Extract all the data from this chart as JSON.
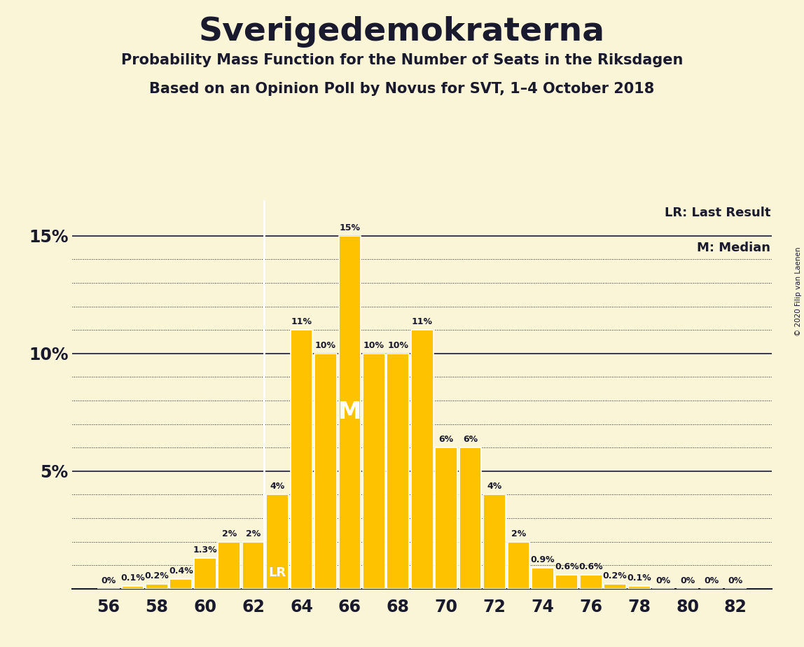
{
  "title": "Sverigedemokraterna",
  "subtitle1": "Probability Mass Function for the Number of Seats in the Riksdagen",
  "subtitle2": "Based on an Opinion Poll by Novus for SVT, 1–4 October 2018",
  "copyright": "© 2020 Filip van Laenen",
  "lr_label": "LR: Last Result",
  "m_label": "M: Median",
  "lr_value": 62,
  "median_value": 66,
  "background_color": "#faf5d7",
  "bar_color": "#ffc200",
  "bar_edge_color": "#ffffff",
  "text_color": "#1a1a2e",
  "seats": [
    56,
    57,
    58,
    59,
    60,
    61,
    62,
    63,
    64,
    65,
    66,
    67,
    68,
    69,
    70,
    71,
    72,
    73,
    74,
    75,
    76,
    77,
    78,
    79,
    80,
    81,
    82
  ],
  "probabilities": [
    0.0,
    0.1,
    0.2,
    0.4,
    1.3,
    2.0,
    2.0,
    4.0,
    11.0,
    10.0,
    15.0,
    10.0,
    10.0,
    11.0,
    6.0,
    6.0,
    4.0,
    2.0,
    0.9,
    0.6,
    0.6,
    0.2,
    0.1,
    0.0,
    0.0,
    0.0,
    0.0
  ],
  "labels": [
    "0%",
    "0.1%",
    "0.2%",
    "0.4%",
    "1.3%",
    "2%",
    "2%",
    "4%",
    "11%",
    "10%",
    "15%",
    "10%",
    "10%",
    "11%",
    "6%",
    "6%",
    "4%",
    "2%",
    "0.9%",
    "0.6%",
    "0.6%",
    "0.2%",
    "0.1%",
    "0%",
    "0%",
    "0%",
    "0%"
  ],
  "ylim": [
    0,
    16.5
  ],
  "xtick_positions": [
    56,
    58,
    60,
    62,
    64,
    66,
    68,
    70,
    72,
    74,
    76,
    78,
    80,
    82
  ],
  "solid_line_levels": [
    5.0,
    10.0,
    15.0
  ],
  "dotted_line_levels_minor": [
    1.0,
    2.0,
    3.0,
    4.0,
    6.0,
    7.0,
    8.0,
    9.0,
    11.0,
    12.0,
    13.0,
    14.0
  ]
}
